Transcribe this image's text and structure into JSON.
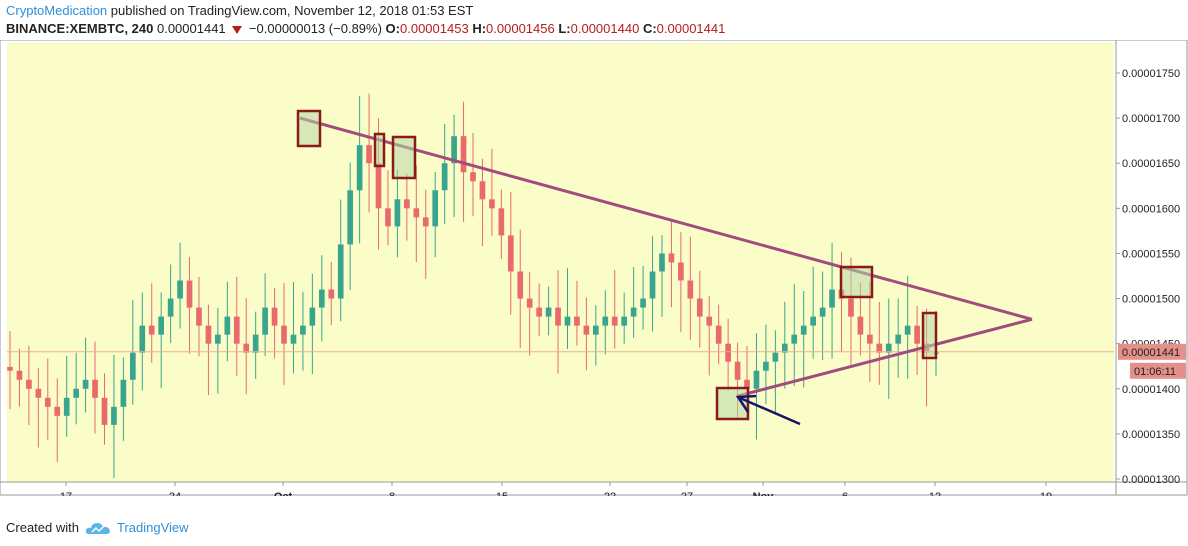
{
  "header": {
    "author": "CryptoMedication",
    "published_text": "published on TradingView.com, November 12, 2018 01:53 EST",
    "symbol": "BINANCE:XEMBTC, 240",
    "last": "0.00001441",
    "change": "−0.00000013 (−0.89%)",
    "o_label": "O:",
    "o_value": "0.00001453",
    "h_label": "H:",
    "h_value": "0.00001456",
    "l_label": "L:",
    "l_value": "0.00001440",
    "c_label": "C:",
    "c_value": "0.00001441"
  },
  "footer": {
    "created_with": "Created with",
    "brand": "TradingView",
    "logo_icon": "tradingview-cloud-icon"
  },
  "colors": {
    "background": "#fbfdc8",
    "up": "#3aa58e",
    "down": "#e8696e",
    "trendline": "#a24c7e",
    "box_stroke": "#8b1a1a",
    "box_fill": "#b7d7a6",
    "arrow": "#1a1464",
    "price_line": "#f0b08a",
    "price_tag": "#e38f8a"
  },
  "chart_data": {
    "type": "candlestick",
    "x_ticks": [
      "17",
      "24",
      "Oct",
      "8",
      "15",
      "22",
      "27",
      "Nov",
      "6",
      "12",
      "19"
    ],
    "y_ticks": [
      "0.00001750",
      "0.00001700",
      "0.00001650",
      "0.00001600",
      "0.00001550",
      "0.00001500",
      "0.00001450",
      "0.00001400",
      "0.00001350",
      "0.00001300"
    ],
    "ylim": [
      1.3e-05,
      1.78e-05
    ],
    "current_price": "0.00001441",
    "countdown": "01:06:11",
    "series_close_approx": [
      1.42e-05,
      1.41e-05,
      1.4e-05,
      1.39e-05,
      1.38e-05,
      1.37e-05,
      1.39e-05,
      1.4e-05,
      1.41e-05,
      1.39e-05,
      1.36e-05,
      1.38e-05,
      1.41e-05,
      1.44e-05,
      1.47e-05,
      1.46e-05,
      1.48e-05,
      1.5e-05,
      1.52e-05,
      1.49e-05,
      1.47e-05,
      1.45e-05,
      1.46e-05,
      1.48e-05,
      1.45e-05,
      1.44e-05,
      1.46e-05,
      1.49e-05,
      1.47e-05,
      1.45e-05,
      1.46e-05,
      1.47e-05,
      1.49e-05,
      1.51e-05,
      1.5e-05,
      1.56e-05,
      1.62e-05,
      1.67e-05,
      1.65e-05,
      1.6e-05,
      1.58e-05,
      1.61e-05,
      1.6e-05,
      1.59e-05,
      1.58e-05,
      1.62e-05,
      1.65e-05,
      1.68e-05,
      1.64e-05,
      1.63e-05,
      1.61e-05,
      1.6e-05,
      1.57e-05,
      1.53e-05,
      1.5e-05,
      1.49e-05,
      1.48e-05,
      1.49e-05,
      1.47e-05,
      1.48e-05,
      1.47e-05,
      1.46e-05,
      1.47e-05,
      1.48e-05,
      1.47e-05,
      1.48e-05,
      1.49e-05,
      1.5e-05,
      1.53e-05,
      1.55e-05,
      1.54e-05,
      1.52e-05,
      1.5e-05,
      1.48e-05,
      1.47e-05,
      1.45e-05,
      1.43e-05,
      1.41e-05,
      1.4e-05,
      1.42e-05,
      1.43e-05,
      1.44e-05,
      1.45e-05,
      1.46e-05,
      1.47e-05,
      1.48e-05,
      1.49e-05,
      1.51e-05,
      1.5e-05,
      1.48e-05,
      1.46e-05,
      1.45e-05,
      1.44e-05,
      1.45e-05,
      1.46e-05,
      1.47e-05,
      1.45e-05,
      1.44e-05,
      1.44e-05
    ],
    "annotations": [
      {
        "type": "descending-trendline",
        "from_date": "Oct 1",
        "to_date": "Nov 18",
        "from_value": 1.7e-05,
        "to_value": 1.477e-05
      },
      {
        "type": "ascending-trendline",
        "from_date": "Oct 29",
        "to_date": "Nov 18",
        "from_value": 1.392e-05,
        "to_value": 1.477e-05
      },
      {
        "type": "highlight-box",
        "label": "peak Oct 1"
      },
      {
        "type": "highlight-box",
        "label": "Oct 8 pair"
      },
      {
        "type": "highlight-box",
        "label": "Oct 9"
      },
      {
        "type": "highlight-box",
        "label": "low Oct 29"
      },
      {
        "type": "highlight-box",
        "label": "Nov 6 touch"
      },
      {
        "type": "highlight-box",
        "label": "Nov 11"
      },
      {
        "type": "arrow",
        "points_to": "low Oct 29"
      }
    ]
  }
}
